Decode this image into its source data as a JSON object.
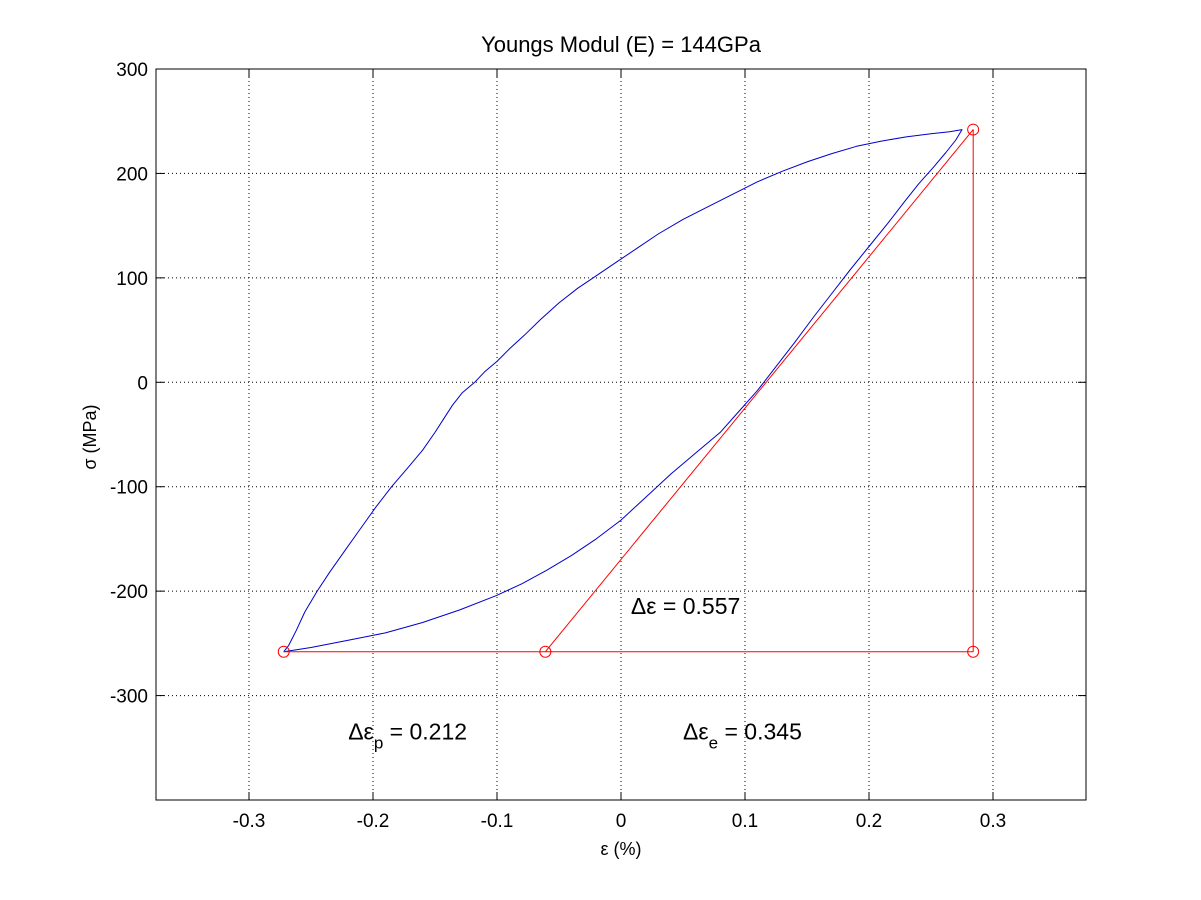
{
  "chart_data": {
    "type": "line",
    "title": "Youngs Modul (E) = 144GPa",
    "xlabel": "ε (%)",
    "ylabel": "σ (MPa)",
    "xlim": [
      -0.375,
      0.375
    ],
    "ylim": [
      -400,
      300
    ],
    "xticks": [
      -0.3,
      -0.2,
      -0.1,
      0,
      0.1,
      0.2,
      0.3
    ],
    "yticks": [
      -300,
      -200,
      -100,
      0,
      100,
      200,
      300
    ],
    "grid": true,
    "grid_style": "dotted",
    "colors": {
      "loop": "#0000cc",
      "construction": "#ff0000",
      "axes": "#000000",
      "grid": "#000000"
    },
    "series": [
      {
        "style": "line",
        "color": "#0000cc",
        "points": [
          [
            -0.272,
            -258
          ],
          [
            -0.268,
            -252
          ],
          [
            -0.262,
            -238
          ],
          [
            -0.255,
            -220
          ],
          [
            -0.245,
            -200
          ],
          [
            -0.235,
            -182
          ],
          [
            -0.222,
            -160
          ],
          [
            -0.21,
            -140
          ],
          [
            -0.198,
            -120
          ],
          [
            -0.185,
            -100
          ],
          [
            -0.172,
            -82
          ],
          [
            -0.16,
            -65
          ],
          [
            -0.15,
            -48
          ],
          [
            -0.143,
            -35
          ],
          [
            -0.136,
            -22
          ],
          [
            -0.128,
            -10
          ],
          [
            -0.118,
            0
          ],
          [
            -0.11,
            10
          ],
          [
            -0.1,
            20
          ],
          [
            -0.09,
            32
          ],
          [
            -0.078,
            45
          ],
          [
            -0.065,
            60
          ],
          [
            -0.05,
            76
          ],
          [
            -0.035,
            90
          ],
          [
            -0.02,
            102
          ],
          [
            -0.005,
            114
          ],
          [
            0.01,
            126
          ],
          [
            0.03,
            142
          ],
          [
            0.05,
            156
          ],
          [
            0.07,
            168
          ],
          [
            0.09,
            180
          ],
          [
            0.11,
            192
          ],
          [
            0.13,
            202
          ],
          [
            0.15,
            211
          ],
          [
            0.17,
            219
          ],
          [
            0.19,
            226
          ],
          [
            0.21,
            231
          ],
          [
            0.23,
            235
          ],
          [
            0.25,
            238
          ],
          [
            0.265,
            240
          ],
          [
            0.275,
            242
          ],
          [
            0.27,
            232
          ],
          [
            0.262,
            220
          ],
          [
            0.252,
            206
          ],
          [
            0.24,
            190
          ],
          [
            0.228,
            172
          ],
          [
            0.215,
            152
          ],
          [
            0.2,
            130
          ],
          [
            0.185,
            108
          ],
          [
            0.17,
            85
          ],
          [
            0.155,
            62
          ],
          [
            0.14,
            38
          ],
          [
            0.125,
            15
          ],
          [
            0.11,
            -8
          ],
          [
            0.095,
            -28
          ],
          [
            0.08,
            -48
          ],
          [
            0.06,
            -68
          ],
          [
            0.04,
            -88
          ],
          [
            0.02,
            -110
          ],
          [
            0.0,
            -132
          ],
          [
            -0.02,
            -150
          ],
          [
            -0.04,
            -166
          ],
          [
            -0.06,
            -180
          ],
          [
            -0.08,
            -193
          ],
          [
            -0.1,
            -204
          ],
          [
            -0.13,
            -218
          ],
          [
            -0.16,
            -230
          ],
          [
            -0.19,
            -240
          ],
          [
            -0.22,
            -247
          ],
          [
            -0.25,
            -254
          ],
          [
            -0.272,
            -258
          ]
        ]
      },
      {
        "style": "line",
        "color": "#ff0000",
        "points": [
          [
            -0.272,
            -258
          ],
          [
            0.284,
            -258
          ],
          [
            0.284,
            242
          ],
          [
            -0.061,
            -258
          ]
        ]
      },
      {
        "style": "markers",
        "marker": "circle",
        "color": "#ff0000",
        "points": [
          [
            -0.272,
            -258
          ],
          [
            -0.061,
            -258
          ],
          [
            0.284,
            -258
          ],
          [
            0.284,
            242
          ]
        ]
      }
    ],
    "annotations": [
      {
        "text": "Δε = 0.557",
        "x": 0.008,
        "y": -222
      },
      {
        "text": "Δε",
        "sub": "p",
        "rest": " = 0.212",
        "x": -0.22,
        "y": -342
      },
      {
        "text": "Δε",
        "sub": "e",
        "rest": " = 0.345",
        "x": 0.05,
        "y": -342
      }
    ]
  }
}
